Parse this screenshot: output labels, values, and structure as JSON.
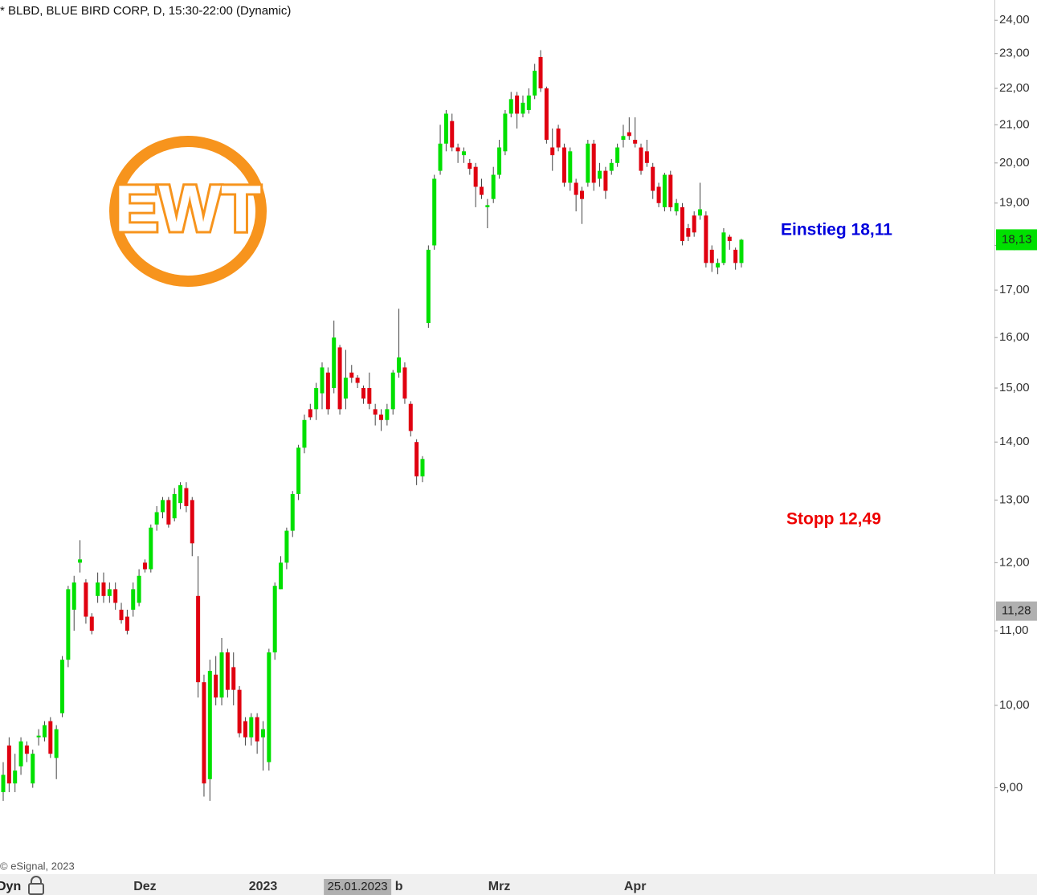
{
  "chart_data": {
    "type": "candlestick",
    "title": "* BLBD, BLUE BIRD CORP, D, 15:30-22:00 (Dynamic)",
    "source": "© eSignal, 2023",
    "logo": "EWT",
    "toolbar_label": "Dyn",
    "log": true,
    "up_color": "#00e000",
    "down_color": "#e00010",
    "ylim": [
      8.06,
      24.63
    ],
    "yticks": [
      {
        "value": 9,
        "label": "9,00"
      },
      {
        "value": 10,
        "label": "10,00"
      },
      {
        "value": 11,
        "label": "11,00"
      },
      {
        "value": 12,
        "label": "12,00"
      },
      {
        "value": 13,
        "label": "13,00"
      },
      {
        "value": 14,
        "label": "14,00"
      },
      {
        "value": 15,
        "label": "15,00"
      },
      {
        "value": 16,
        "label": "16,00"
      },
      {
        "value": 17,
        "label": "17,00"
      },
      {
        "value": 18,
        "label": "18,00"
      },
      {
        "value": 19,
        "label": "19,00"
      },
      {
        "value": 20,
        "label": "20,00"
      },
      {
        "value": 21,
        "label": "21,00"
      },
      {
        "value": 22,
        "label": "22,00"
      },
      {
        "value": 23,
        "label": "23,00"
      },
      {
        "value": 24,
        "label": "24,00"
      }
    ],
    "xticks": [
      {
        "value": 24,
        "label": "Dez"
      },
      {
        "value": 44,
        "label": "2023"
      },
      {
        "value": 67,
        "label": "b"
      },
      {
        "value": 84,
        "label": "Mrz"
      },
      {
        "value": 107,
        "label": "Apr"
      }
    ],
    "last_price": {
      "value": 18.13,
      "label": "18,13"
    },
    "crosshair": {
      "x": {
        "value": 60,
        "label": "25.01.2023"
      },
      "y": {
        "value": 11.28,
        "label": "11,28"
      }
    },
    "annotations": [
      {
        "text": "Einstieg 18,11",
        "color": "#0000dd"
      },
      {
        "text": "Stopp 12,49",
        "color": "#ee0000"
      }
    ],
    "open": [
      8.95,
      9.5,
      9.05,
      9.25,
      9.5,
      9.05,
      9.6,
      9.6,
      9.8,
      9.35,
      9.9,
      10.6,
      11.3,
      12.0,
      11.7,
      11.2,
      11.5,
      11.7,
      11.5,
      11.6,
      11.3,
      11.2,
      11.3,
      11.4,
      12.0,
      11.9,
      12.6,
      12.8,
      13.0,
      12.7,
      12.95,
      13.2,
      13.0,
      11.5,
      10.3,
      9.1,
      10.4,
      10.1,
      10.7,
      10.5,
      10.2,
      9.8,
      9.6,
      9.85,
      9.6,
      9.3,
      10.7,
      11.6,
      12.0,
      12.5,
      13.1,
      13.9,
      14.6,
      14.6,
      14.9,
      15.3,
      15.0,
      15.8,
      14.8,
      15.3,
      15.2,
      15.0,
      15.0,
      14.6,
      14.5,
      14.4,
      14.6,
      15.3,
      15.4,
      14.7,
      14.0,
      13.4,
      16.3,
      18.0,
      19.8,
      20.5,
      21.1,
      20.4,
      20.2,
      20.0,
      19.9,
      19.4,
      18.9,
      19.1,
      19.7,
      20.3,
      21.3,
      21.8,
      21.3,
      21.4,
      21.8,
      22.9,
      22.0,
      20.4,
      20.9,
      20.4,
      19.5,
      19.5,
      19.3,
      19.5,
      20.5,
      19.6,
      19.8,
      19.8,
      20.0,
      20.6,
      20.8,
      20.6,
      20.4,
      20.3,
      19.9,
      19.4,
      18.9,
      19.7,
      18.8,
      18.9,
      18.4,
      18.7,
      18.7,
      18.7,
      17.9,
      17.5,
      17.6,
      18.2,
      17.9,
      17.6
    ],
    "high": [
      9.3,
      9.6,
      9.4,
      9.6,
      9.55,
      9.45,
      9.7,
      9.8,
      9.85,
      9.75,
      10.65,
      11.65,
      11.8,
      12.35,
      11.75,
      11.25,
      11.85,
      11.85,
      11.7,
      11.7,
      11.4,
      11.3,
      11.7,
      11.9,
      12.05,
      12.6,
      12.9,
      13.05,
      13.05,
      13.2,
      13.3,
      13.3,
      13.05,
      12.1,
      10.4,
      10.6,
      10.65,
      10.9,
      10.75,
      10.7,
      10.25,
      9.85,
      9.9,
      9.9,
      9.8,
      10.75,
      11.7,
      12.1,
      12.55,
      13.15,
      13.95,
      14.5,
      14.7,
      15.1,
      15.5,
      15.4,
      16.35,
      15.85,
      15.75,
      15.45,
      15.25,
      15.05,
      15.3,
      14.7,
      14.6,
      14.7,
      15.35,
      16.6,
      15.5,
      14.75,
      14.05,
      13.75,
      18.0,
      19.7,
      21.0,
      21.4,
      21.3,
      20.5,
      20.4,
      20.1,
      20.0,
      19.6,
      19.1,
      19.9,
      20.6,
      21.4,
      21.9,
      21.9,
      21.8,
      22.0,
      22.7,
      23.1,
      22.05,
      20.9,
      21.0,
      20.5,
      20.4,
      19.6,
      19.4,
      20.6,
      20.6,
      20.0,
      19.9,
      20.1,
      20.5,
      21.0,
      21.2,
      21.2,
      20.5,
      20.6,
      20.0,
      19.5,
      19.75,
      19.8,
      19.1,
      19.0,
      18.5,
      18.8,
      19.5,
      18.8,
      18.0,
      17.7,
      18.4,
      18.25,
      17.95,
      18.15
    ],
    "low": [
      8.85,
      8.95,
      8.95,
      9.15,
      9.3,
      9.0,
      9.5,
      9.55,
      9.35,
      9.1,
      9.85,
      10.5,
      11.0,
      11.85,
      11.1,
      10.95,
      11.4,
      11.4,
      11.4,
      11.3,
      11.1,
      10.95,
      11.2,
      11.35,
      11.85,
      11.85,
      12.5,
      12.7,
      12.55,
      12.65,
      12.85,
      12.8,
      12.1,
      10.1,
      8.9,
      8.85,
      10.0,
      10.0,
      10.1,
      10.0,
      9.6,
      9.5,
      9.5,
      9.4,
      9.2,
      9.2,
      10.6,
      11.6,
      11.9,
      12.4,
      13.0,
      13.8,
      14.4,
      14.4,
      14.6,
      14.5,
      14.9,
      14.5,
      14.6,
      15.1,
      15.0,
      14.7,
      14.6,
      14.3,
      14.2,
      14.3,
      14.5,
      15.2,
      14.7,
      14.1,
      13.25,
      13.3,
      16.2,
      17.9,
      19.7,
      20.3,
      20.3,
      20.0,
      20.0,
      19.7,
      18.9,
      19.1,
      18.4,
      19.0,
      19.6,
      20.2,
      21.2,
      20.9,
      21.2,
      21.3,
      21.7,
      21.9,
      20.5,
      19.8,
      20.3,
      19.4,
      19.3,
      18.8,
      18.5,
      19.4,
      19.3,
      19.4,
      19.1,
      19.7,
      19.9,
      20.4,
      20.6,
      20.4,
      19.7,
      19.9,
      19.1,
      18.9,
      18.8,
      18.8,
      18.7,
      18.0,
      18.1,
      18.2,
      18.6,
      17.5,
      17.4,
      17.35,
      17.55,
      17.9,
      17.45,
      17.5
    ],
    "close": [
      9.15,
      9.05,
      9.2,
      9.55,
      9.4,
      9.4,
      9.62,
      9.75,
      9.4,
      9.7,
      10.6,
      11.6,
      11.7,
      12.05,
      11.2,
      11.0,
      11.7,
      11.5,
      11.6,
      11.4,
      11.15,
      11.0,
      11.6,
      11.8,
      11.9,
      12.55,
      12.8,
      13.0,
      12.6,
      13.1,
      13.25,
      12.9,
      12.3,
      10.3,
      9.05,
      10.45,
      10.1,
      10.7,
      10.2,
      10.2,
      9.65,
      9.6,
      9.85,
      9.55,
      9.7,
      10.7,
      11.65,
      12.0,
      12.5,
      13.1,
      13.9,
      14.4,
      14.45,
      15.0,
      15.4,
      14.6,
      16.0,
      14.6,
      15.2,
      15.2,
      15.1,
      14.8,
      14.7,
      14.5,
      14.4,
      14.6,
      15.3,
      15.6,
      14.8,
      14.2,
      13.4,
      13.7,
      17.9,
      19.6,
      20.5,
      21.3,
      20.4,
      20.3,
      20.3,
      19.85,
      19.4,
      19.2,
      18.95,
      19.7,
      20.4,
      21.3,
      21.7,
      21.3,
      21.6,
      21.8,
      22.5,
      22.0,
      20.6,
      20.2,
      20.4,
      19.5,
      20.3,
      19.2,
      19.1,
      20.5,
      19.5,
      19.8,
      19.3,
      20.0,
      20.4,
      20.7,
      20.7,
      20.5,
      19.8,
      20.0,
      19.3,
      19.0,
      19.7,
      18.9,
      19.0,
      18.1,
      18.2,
      18.3,
      18.85,
      17.6,
      17.6,
      17.6,
      18.3,
      18.1,
      17.6,
      18.13
    ]
  }
}
